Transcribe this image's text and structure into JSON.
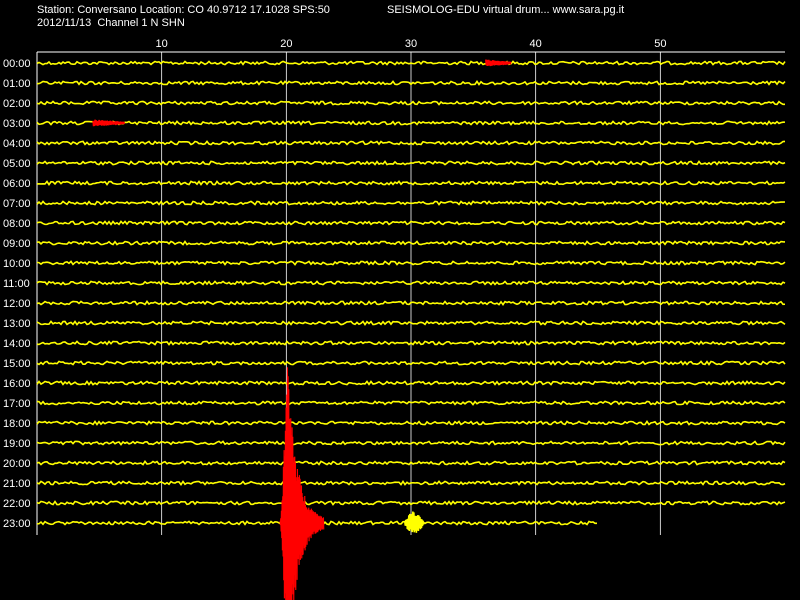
{
  "header": {
    "line1": "Station: Conversano Location: CO 40.9712 17.1028 SPS:50",
    "line2": "2012/11/13  Channel 1 N SHN",
    "right": "SEISMOLOG-EDU virtual drum... www.sara.pg.it"
  },
  "colors": {
    "background": "#000000",
    "trace": "#ffff00",
    "event": "#ff0000",
    "grid": "#ffffff",
    "text": "#ffffff"
  },
  "chart_data": {
    "type": "line",
    "title": "",
    "xlabel": "",
    "ylabel": "",
    "x_unit": "minutes",
    "xlim": [
      0,
      60
    ],
    "x_ticks": [
      10,
      20,
      30,
      40,
      50
    ],
    "grid": true,
    "rows": [
      "00:00",
      "01:00",
      "02:00",
      "03:00",
      "04:00",
      "05:00",
      "06:00",
      "07:00",
      "08:00",
      "09:00",
      "10:00",
      "11:00",
      "12:00",
      "13:00",
      "14:00",
      "15:00",
      "16:00",
      "17:00",
      "18:00",
      "19:00",
      "20:00",
      "21:00",
      "22:00",
      "23:00"
    ],
    "trace_end_last_row_minutes": 45,
    "events": [
      {
        "row": "00:00",
        "start_min": 36,
        "end_min": 38,
        "color": "red"
      },
      {
        "row": "03:00",
        "start_min": 4.5,
        "end_min": 7,
        "color": "red"
      },
      {
        "row": "23:00",
        "start_min": 19.5,
        "end_min": 23,
        "color": "red"
      },
      {
        "row": "23:00",
        "start_min": 29.5,
        "end_min": 31,
        "color": "yellow"
      }
    ]
  }
}
